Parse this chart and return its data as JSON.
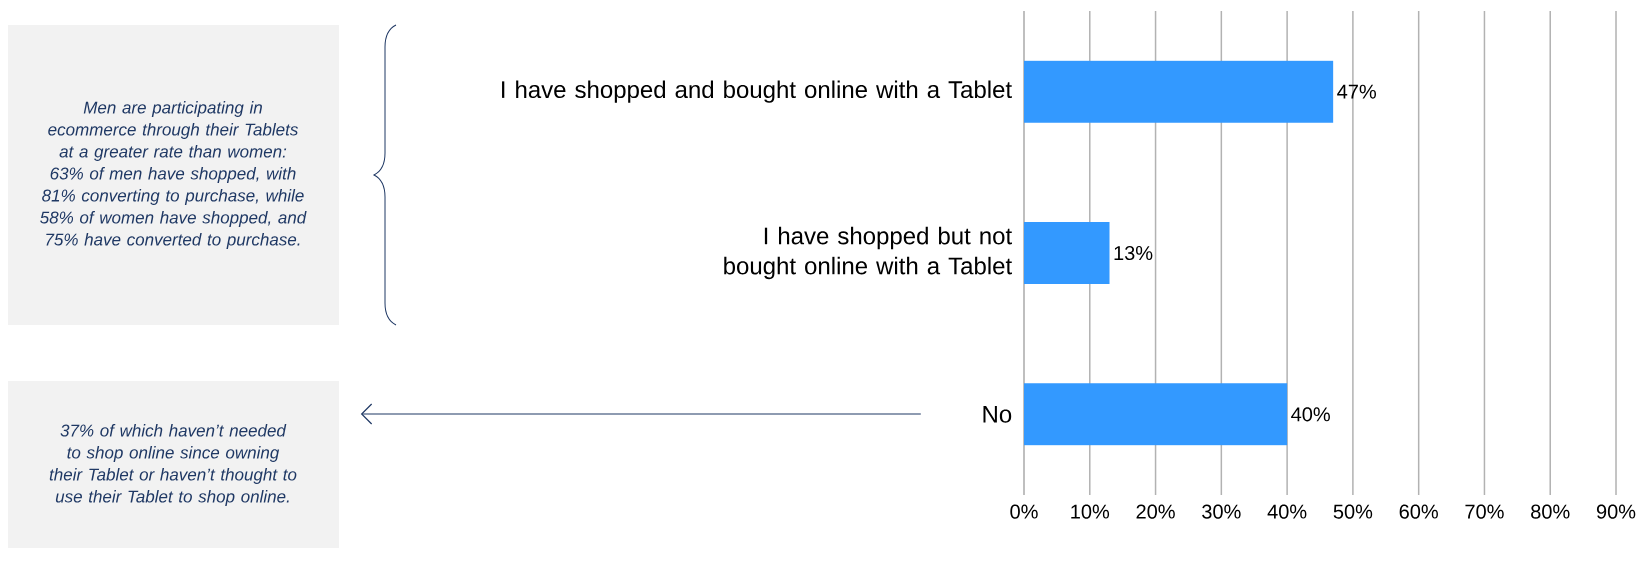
{
  "chart_data": {
    "type": "bar",
    "orientation": "horizontal",
    "categories": [
      "I have shopped and bought online with a Tablet",
      "I have shopped but not bought online with a Tablet",
      "No"
    ],
    "values": [
      47,
      13,
      40
    ],
    "value_labels": [
      "47%",
      "13%",
      "40%"
    ],
    "color": "#3399ff",
    "xlim": [
      0,
      90
    ],
    "xticks": [
      {
        "value": 0,
        "label": "0%"
      },
      {
        "value": 10,
        "label": "10%"
      },
      {
        "value": 20,
        "label": "20%"
      },
      {
        "value": 30,
        "label": "30%"
      },
      {
        "value": 40,
        "label": "40%"
      },
      {
        "value": 50,
        "label": "50%"
      },
      {
        "value": 60,
        "label": "60%"
      },
      {
        "value": 70,
        "label": "70%"
      },
      {
        "value": 80,
        "label": "80%"
      },
      {
        "value": 90,
        "label": "90%"
      }
    ],
    "grid": "x",
    "annotations": [
      "Men are participating in ecommerce through their Tablets at a greater rate than women: 63% of men have shopped, with 81% converting to purchase, while 58% of women have shopped, and 75% have converted to purchase.",
      "37% of which haven’t needed to shop online since owning their Tablet or haven’t thought to use their Tablet to shop online."
    ]
  }
}
